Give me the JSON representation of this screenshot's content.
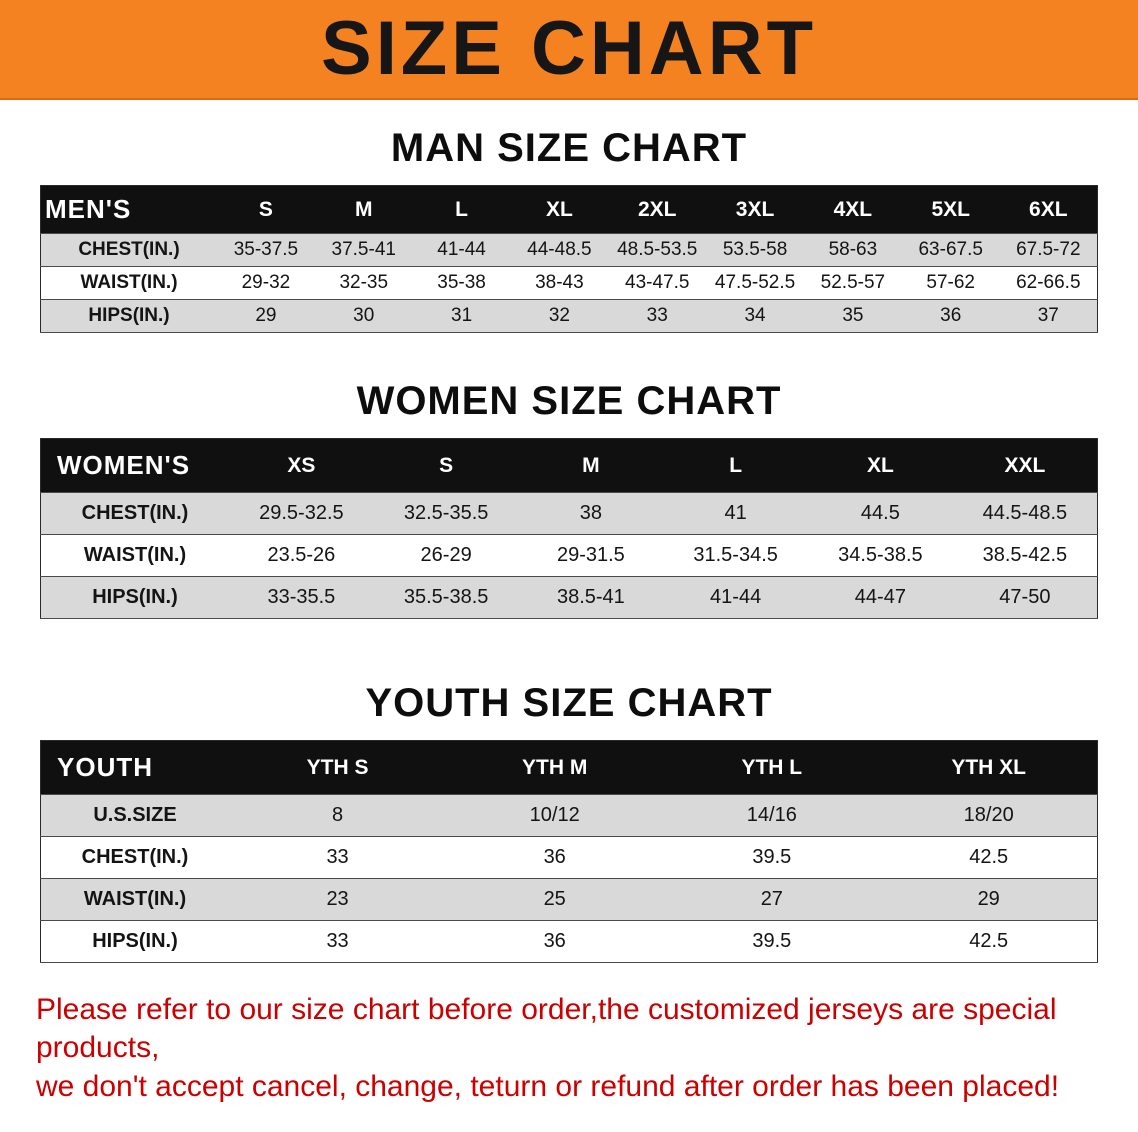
{
  "banner": {
    "title": "SIZE CHART"
  },
  "colors": {
    "banner_bg": "#f58220",
    "table_header_bg": "#101010",
    "row_stripe": "#d9d9d9",
    "notice_text": "#cc0000"
  },
  "tables": [
    {
      "title": "MAN SIZE CHART",
      "header": [
        "MEN'S",
        "S",
        "M",
        "L",
        "XL",
        "2XL",
        "3XL",
        "4XL",
        "5XL",
        "6XL"
      ],
      "rows": [
        {
          "label": "CHEST(IN.)",
          "values": [
            "35-37.5",
            "37.5-41",
            "41-44",
            "44-48.5",
            "48.5-53.5",
            "53.5-58",
            "58-63",
            "63-67.5",
            "67.5-72"
          ]
        },
        {
          "label": "WAIST(IN.)",
          "values": [
            "29-32",
            "32-35",
            "35-38",
            "38-43",
            "43-47.5",
            "47.5-52.5",
            "52.5-57",
            "57-62",
            "62-66.5"
          ]
        },
        {
          "label": "HIPS(IN.)",
          "values": [
            "29",
            "30",
            "31",
            "32",
            "33",
            "34",
            "35",
            "36",
            "37"
          ]
        }
      ]
    },
    {
      "title": "WOMEN SIZE CHART",
      "header": [
        "WOMEN'S",
        "XS",
        "S",
        "M",
        "L",
        "XL",
        "XXL"
      ],
      "rows": [
        {
          "label": "CHEST(IN.)",
          "values": [
            "29.5-32.5",
            "32.5-35.5",
            "38",
            "41",
            "44.5",
            "44.5-48.5"
          ]
        },
        {
          "label": "WAIST(IN.)",
          "values": [
            "23.5-26",
            "26-29",
            "29-31.5",
            "31.5-34.5",
            "34.5-38.5",
            "38.5-42.5"
          ]
        },
        {
          "label": "HIPS(IN.)",
          "values": [
            "33-35.5",
            "35.5-38.5",
            "38.5-41",
            "41-44",
            "44-47",
            "47-50"
          ]
        }
      ]
    },
    {
      "title": "YOUTH SIZE CHART",
      "header": [
        "YOUTH",
        "YTH S",
        "YTH M",
        "YTH L",
        "YTH XL"
      ],
      "rows": [
        {
          "label": "U.S.SIZE",
          "values": [
            "8",
            "10/12",
            "14/16",
            "18/20"
          ]
        },
        {
          "label": "CHEST(IN.)",
          "values": [
            "33",
            "36",
            "39.5",
            "42.5"
          ]
        },
        {
          "label": "WAIST(IN.)",
          "values": [
            "23",
            "25",
            "27",
            "29"
          ]
        },
        {
          "label": "HIPS(IN.)",
          "values": [
            "33",
            "36",
            "39.5",
            "42.5"
          ]
        }
      ]
    }
  ],
  "notice": {
    "line1": "Please refer to our size chart before order,the customized jerseys are special products,",
    "line2": "we don't accept cancel, change, teturn or refund after order has been placed!"
  }
}
